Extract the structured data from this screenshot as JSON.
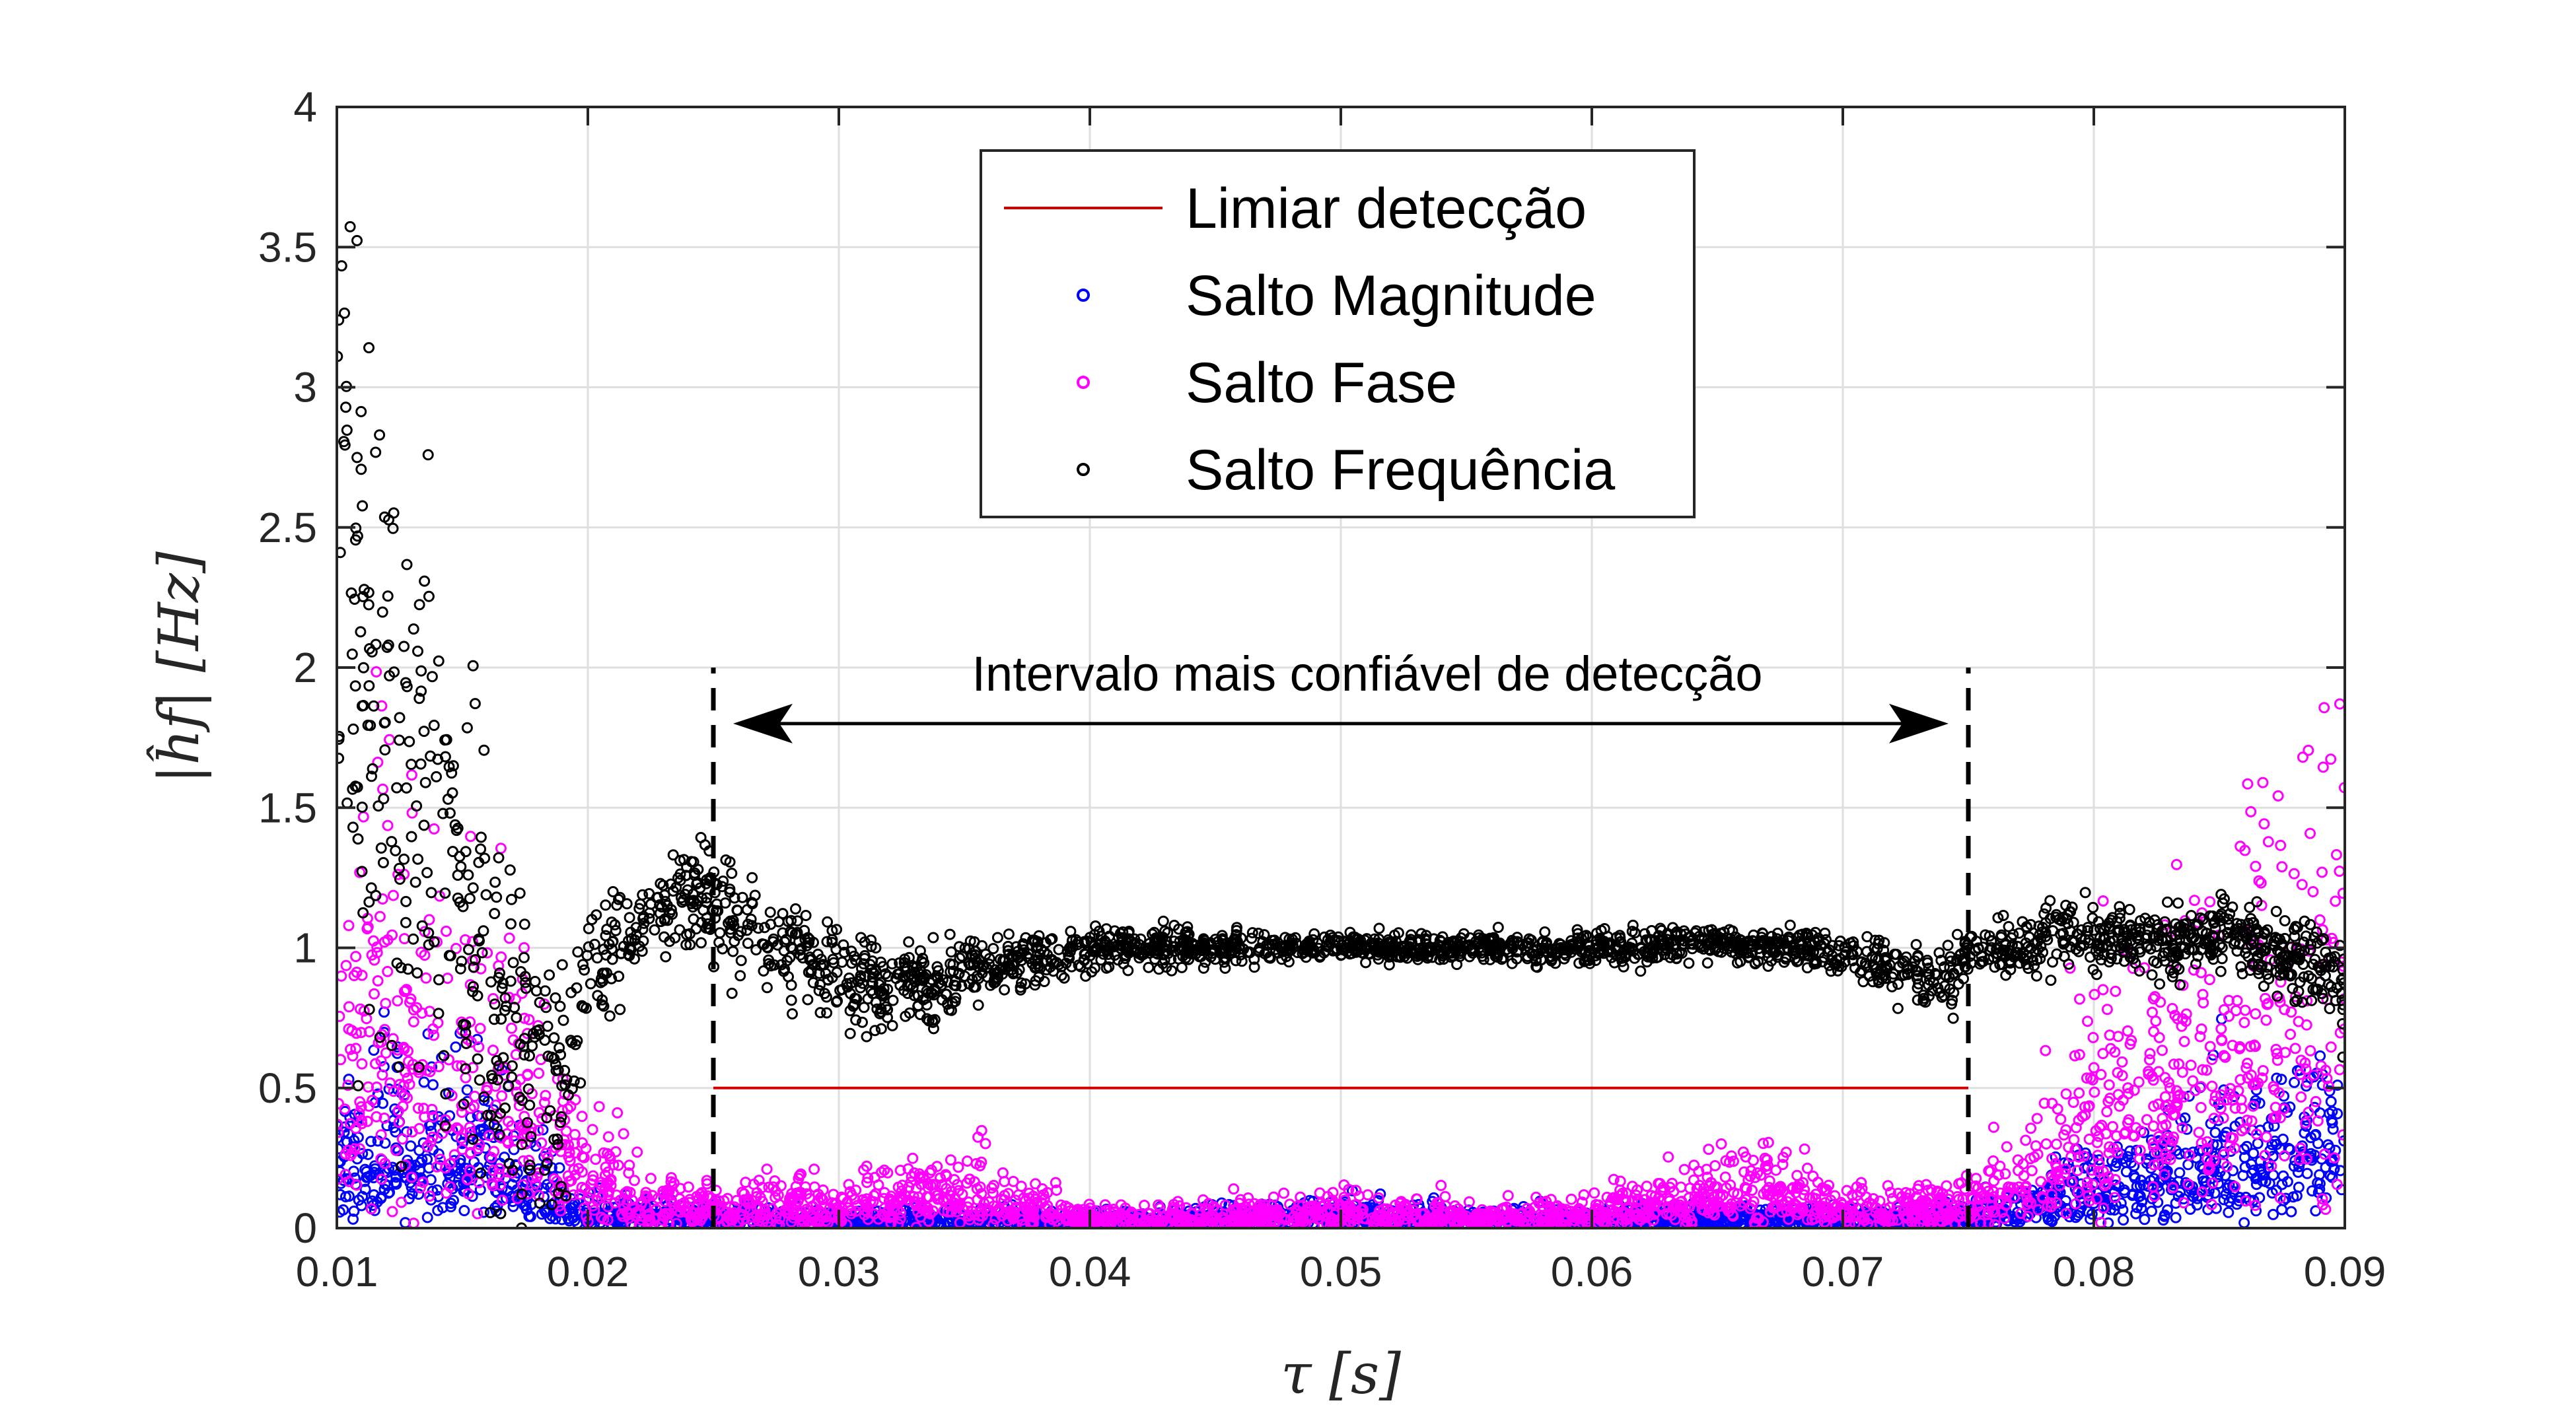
{
  "chart_data": {
    "type": "scatter",
    "title": "",
    "xlabel": "τ [s]",
    "ylabel": "|ĥf| [Hz]",
    "xlim": [
      0.01,
      0.09
    ],
    "ylim": [
      0,
      4
    ],
    "xticks": [
      0.01,
      0.02,
      0.03,
      0.04,
      0.05,
      0.06,
      0.07,
      0.08,
      0.09
    ],
    "xtick_labels": [
      "0.01",
      "0.02",
      "0.03",
      "0.04",
      "0.05",
      "0.06",
      "0.07",
      "0.08",
      "0.09"
    ],
    "yticks": [
      0,
      0.5,
      1,
      1.5,
      2,
      2.5,
      3,
      3.5,
      4
    ],
    "ytick_labels": [
      "0",
      "0.5",
      "1",
      "1.5",
      "2",
      "2.5",
      "3",
      "3.5",
      "4"
    ],
    "grid": true,
    "legend_position": "top-center",
    "series": [
      {
        "name": "Limiar detecção",
        "kind": "line",
        "color": "#d40000",
        "x": [
          0.025,
          0.075
        ],
        "y": [
          0.5,
          0.5
        ]
      },
      {
        "name": "Salto Magnitude",
        "kind": "scatter",
        "color": "#0000ff",
        "x": [
          0.01,
          0.011,
          0.012,
          0.013,
          0.014,
          0.015,
          0.016,
          0.017,
          0.018,
          0.019,
          0.02,
          0.022,
          0.025,
          0.03,
          0.035,
          0.04,
          0.045,
          0.05,
          0.055,
          0.06,
          0.065,
          0.07,
          0.075,
          0.077,
          0.079,
          0.081,
          0.083,
          0.085,
          0.087,
          0.089,
          0.09
        ],
        "y": [
          0.35,
          0.45,
          0.5,
          0.42,
          0.5,
          0.48,
          0.4,
          0.3,
          0.2,
          0.14,
          0.1,
          0.08,
          0.06,
          0.05,
          0.05,
          0.05,
          0.05,
          0.07,
          0.05,
          0.05,
          0.06,
          0.05,
          0.06,
          0.1,
          0.2,
          0.3,
          0.38,
          0.4,
          0.42,
          0.45,
          0.45
        ],
        "y_spread": [
          0.35,
          0.4,
          0.45,
          0.45,
          0.45,
          0.45,
          0.4,
          0.3,
          0.2,
          0.14,
          0.1,
          0.08,
          0.06,
          0.05,
          0.05,
          0.05,
          0.05,
          0.08,
          0.05,
          0.05,
          0.06,
          0.05,
          0.06,
          0.1,
          0.2,
          0.25,
          0.3,
          0.35,
          0.4,
          0.45,
          0.45
        ]
      },
      {
        "name": "Salto Fase",
        "kind": "scatter",
        "color": "#ff00ff",
        "x": [
          0.01,
          0.011,
          0.012,
          0.013,
          0.014,
          0.015,
          0.016,
          0.017,
          0.018,
          0.019,
          0.02,
          0.022,
          0.025,
          0.028,
          0.03,
          0.033,
          0.035,
          0.038,
          0.04,
          0.045,
          0.05,
          0.055,
          0.06,
          0.063,
          0.065,
          0.068,
          0.07,
          0.073,
          0.075,
          0.077,
          0.079,
          0.081,
          0.083,
          0.085,
          0.087,
          0.089,
          0.09
        ],
        "y": [
          1.2,
          1.3,
          1.3,
          1.2,
          1.1,
          1.0,
          0.9,
          0.8,
          0.6,
          0.45,
          0.3,
          0.15,
          0.12,
          0.15,
          0.12,
          0.2,
          0.2,
          0.12,
          0.06,
          0.07,
          0.09,
          0.07,
          0.08,
          0.15,
          0.22,
          0.2,
          0.1,
          0.12,
          0.12,
          0.25,
          0.6,
          0.9,
          1.1,
          1.2,
          1.3,
          1.5,
          1.8
        ],
        "y_spread": [
          1.2,
          1.2,
          1.2,
          1.1,
          1.0,
          0.9,
          0.8,
          0.7,
          0.55,
          0.4,
          0.3,
          0.15,
          0.12,
          0.15,
          0.12,
          0.2,
          0.2,
          0.12,
          0.06,
          0.07,
          0.09,
          0.07,
          0.08,
          0.15,
          0.22,
          0.2,
          0.1,
          0.12,
          0.12,
          0.25,
          0.5,
          0.7,
          0.8,
          0.9,
          1.0,
          1.2,
          1.4
        ]
      },
      {
        "name": "Salto Frequência",
        "kind": "scatter",
        "color": "#000000",
        "x": [
          0.01,
          0.011,
          0.012,
          0.013,
          0.014,
          0.015,
          0.016,
          0.017,
          0.018,
          0.019,
          0.02,
          0.021,
          0.022,
          0.023,
          0.024,
          0.025,
          0.027,
          0.029,
          0.031,
          0.033,
          0.035,
          0.037,
          0.04,
          0.045,
          0.05,
          0.055,
          0.06,
          0.065,
          0.068,
          0.07,
          0.072,
          0.074,
          0.075,
          0.077,
          0.079,
          0.081,
          0.083,
          0.085,
          0.087,
          0.089,
          0.09
        ],
        "y": [
          2.2,
          2.1,
          1.9,
          1.6,
          1.3,
          1.1,
          0.9,
          0.7,
          0.5,
          0.55,
          0.85,
          1.0,
          1.05,
          1.15,
          1.2,
          1.15,
          1.05,
          0.95,
          0.88,
          0.85,
          0.9,
          0.95,
          1.0,
          1.0,
          1.0,
          1.0,
          1.0,
          1.02,
          1.0,
          0.98,
          0.92,
          0.88,
          0.98,
          1.0,
          1.05,
          1.05,
          1.02,
          1.05,
          1.0,
          0.95,
          0.85
        ],
        "y_spread": [
          1.3,
          1.4,
          1.3,
          1.2,
          1.0,
          0.9,
          0.8,
          0.6,
          0.45,
          0.4,
          0.25,
          0.18,
          0.15,
          0.15,
          0.2,
          0.2,
          0.18,
          0.18,
          0.18,
          0.15,
          0.12,
          0.1,
          0.08,
          0.06,
          0.05,
          0.05,
          0.06,
          0.06,
          0.06,
          0.08,
          0.1,
          0.12,
          0.1,
          0.1,
          0.12,
          0.12,
          0.12,
          0.12,
          0.15,
          0.15,
          0.2
        ]
      }
    ],
    "annotations": [
      {
        "text": "Intervalo mais confiável de detecção",
        "kind": "double-arrow",
        "x_start": 0.025,
        "x_end": 0.075,
        "y": 1.8
      },
      {
        "kind": "vline",
        "style": "dashed",
        "x": 0.025,
        "y_from": 0,
        "y_to": 2.0
      },
      {
        "kind": "vline",
        "style": "dashed",
        "x": 0.075,
        "y_from": 0,
        "y_to": 2.0
      }
    ]
  }
}
